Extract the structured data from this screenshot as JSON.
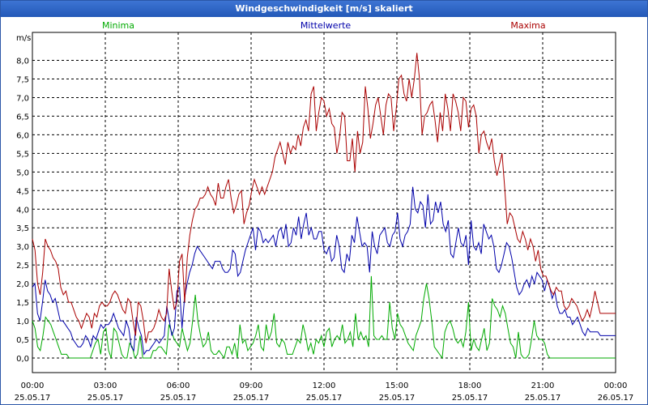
{
  "window": {
    "title": "Windgeschwindigkeit [m/s] skaliert"
  },
  "chart_data": {
    "type": "line",
    "title": "Windgeschwindigkeit [m/s] skaliert",
    "ylabel": "m/s",
    "xlabel": "",
    "ylim": [
      0,
      8.4
    ],
    "xlim": [
      0,
      24
    ],
    "grid": true,
    "legend_placement": "top",
    "y_ticks": [
      "0,0",
      "0,5",
      "1,0",
      "1,5",
      "2,0",
      "2,5",
      "3,0",
      "3,5",
      "4,0",
      "4,5",
      "5,0",
      "5,5",
      "6,0",
      "6,5",
      "7,0",
      "7,5",
      "8,0"
    ],
    "x_ticks": [
      {
        "time": "00:00",
        "date": "25.05.17"
      },
      {
        "time": "03:00",
        "date": "25.05.17"
      },
      {
        "time": "06:00",
        "date": "25.05.17"
      },
      {
        "time": "09:00",
        "date": "25.05.17"
      },
      {
        "time": "12:00",
        "date": "25.05.17"
      },
      {
        "time": "15:00",
        "date": "25.05.17"
      },
      {
        "time": "18:00",
        "date": "25.05.17"
      },
      {
        "time": "21:00",
        "date": "25.05.17"
      },
      {
        "time": "00:00",
        "date": "26.05.17"
      }
    ],
    "series": [
      {
        "name": "Minima",
        "color": "#00aa00",
        "x_step_h": 0.167,
        "values": [
          1.0,
          0.8,
          0.3,
          0.2,
          0.6,
          1.1,
          1.0,
          0.9,
          0.7,
          0.5,
          0.3,
          0.1,
          0.1,
          0.1,
          0.0,
          0.0,
          0.0,
          0.0,
          0.0,
          0.0,
          0.0,
          0.0,
          0.0,
          0.2,
          0.4,
          0.5,
          0.1,
          0.7,
          0.8,
          0.2,
          0.0,
          0.8,
          0.7,
          0.4,
          0.1,
          0.0,
          0.0,
          0.4,
          0.3,
          0.0,
          0.1,
          0.6,
          0.0,
          0.0,
          0.0,
          0.0,
          0.2,
          0.2,
          0.3,
          0.3,
          0.2,
          0.1,
          0.9,
          0.7,
          0.5,
          0.4,
          0.3,
          0.8,
          0.5,
          0.2,
          0.4,
          1.0,
          1.7,
          1.0,
          0.6,
          0.3,
          0.4,
          0.7,
          0.2,
          0.1,
          0.1,
          0.2,
          0.1,
          0.0,
          0.3,
          0.3,
          0.1,
          0.4,
          0.0,
          0.9,
          0.4,
          0.5,
          0.2,
          0.3,
          0.4,
          0.6,
          0.9,
          0.3,
          0.2,
          0.9,
          0.5,
          0.7,
          1.2,
          0.4,
          0.3,
          0.5,
          0.4,
          0.1,
          0.1,
          0.1,
          0.3,
          0.5,
          0.4,
          0.9,
          0.6,
          0.2,
          0.4,
          0.1,
          0.5,
          0.4,
          0.6,
          0.3,
          0.7,
          0.8,
          0.3,
          0.5,
          0.6,
          0.5,
          0.9,
          0.4,
          0.5,
          0.7,
          0.3,
          1.2,
          0.5,
          0.7,
          0.5,
          0.6,
          0.3,
          2.2,
          0.6,
          0.5,
          0.5,
          0.6,
          0.5,
          0.5,
          1.5,
          0.8,
          0.5,
          1.2,
          0.9,
          0.8,
          0.6,
          0.4,
          0.3,
          0.2,
          0.6,
          0.8,
          1.0,
          1.6,
          2.0,
          1.6,
          1.0,
          0.3,
          0.2,
          0.1,
          0.0,
          0.7,
          0.9,
          1.0,
          0.8,
          0.5,
          0.4,
          0.5,
          0.3,
          0.7,
          1.5,
          0.2,
          0.5,
          0.3,
          0.2,
          0.5,
          0.8,
          0.2,
          0.4,
          1.6,
          1.4,
          1.3,
          1.1,
          1.4,
          1.2,
          0.8,
          0.4,
          0.3,
          0.0,
          0.7,
          0.1,
          0.0,
          0.0,
          0.1,
          0.5,
          1.0,
          0.6,
          0.5,
          0.5,
          0.4,
          0.1,
          0.0,
          0.0,
          0.0,
          0.0,
          0.0,
          0.0,
          0.0,
          0.0,
          0.0,
          0.0,
          0.0,
          0.0,
          0.0,
          0.0,
          0.0,
          0.0,
          0.0,
          0.0,
          0.0,
          0.0,
          0.0,
          0.0,
          0.0,
          0.0,
          0.0,
          0.0
        ]
      },
      {
        "name": "Mittelwerte",
        "color": "#0000aa",
        "x_step_h": 0.167,
        "values": [
          1.9,
          2.0,
          1.2,
          1.0,
          1.5,
          2.1,
          1.8,
          1.7,
          1.5,
          1.6,
          1.3,
          1.0,
          1.0,
          0.9,
          0.8,
          0.7,
          0.5,
          0.4,
          0.3,
          0.3,
          0.4,
          0.6,
          0.5,
          0.3,
          0.6,
          0.5,
          0.7,
          0.9,
          0.8,
          0.9,
          0.9,
          1.0,
          1.2,
          1.0,
          0.8,
          0.7,
          0.6,
          1.0,
          0.8,
          0.3,
          0.2,
          1.1,
          0.8,
          0.6,
          0.1,
          0.2,
          0.2,
          0.3,
          0.4,
          0.5,
          0.4,
          0.5,
          0.6,
          1.4,
          1.0,
          0.6,
          0.8,
          1.8,
          1.9,
          0.8,
          1.6,
          2.0,
          2.3,
          2.5,
          2.8,
          3.0,
          2.9,
          2.8,
          2.7,
          2.6,
          2.5,
          2.4,
          2.6,
          2.6,
          2.6,
          2.4,
          2.3,
          2.3,
          2.4,
          2.9,
          2.8,
          2.2,
          2.3,
          2.6,
          2.9,
          3.1,
          3.3,
          3.5,
          2.9,
          3.5,
          3.4,
          3.1,
          3.2,
          3.1,
          3.2,
          3.3,
          3.0,
          3.4,
          3.5,
          3.2,
          3.6,
          3.0,
          3.1,
          3.5,
          3.3,
          3.8,
          3.2,
          3.6,
          3.9,
          3.3,
          3.5,
          3.2,
          3.2,
          3.4,
          3.4,
          2.9,
          2.8,
          3.0,
          2.6,
          2.7,
          3.3,
          3.0,
          2.4,
          2.3,
          2.8,
          2.6,
          3.3,
          3.1,
          3.8,
          3.4,
          3.0,
          3.1,
          3.0,
          2.3,
          3.4,
          3.0,
          2.8,
          3.3,
          3.4,
          3.5,
          3.1,
          3.0,
          3.3,
          3.4,
          3.9,
          3.2,
          3.0,
          3.3,
          3.4,
          3.6,
          4.6,
          4.0,
          3.9,
          4.2,
          4.1,
          3.5,
          4.4,
          3.6,
          3.7,
          4.2,
          3.9,
          4.2,
          3.6,
          3.4,
          3.7,
          2.8,
          2.7,
          3.1,
          3.5,
          3.1,
          3.0,
          3.3,
          2.5,
          3.7,
          3.0,
          2.9,
          3.1,
          2.8,
          3.6,
          3.4,
          3.2,
          3.3,
          3.0,
          2.4,
          2.3,
          2.5,
          2.8,
          3.1,
          3.0,
          2.7,
          2.3,
          1.9,
          1.7,
          1.8,
          2.0,
          2.1,
          1.9,
          2.2,
          2.0,
          2.3,
          2.2,
          2.1,
          1.8,
          2.1,
          1.9,
          1.6,
          1.8,
          1.4,
          1.2,
          1.2,
          1.3,
          1.1,
          1.1,
          0.9,
          1.0,
          1.1,
          0.9,
          0.7,
          0.6,
          0.8,
          0.7,
          0.7,
          0.7,
          0.7,
          0.6,
          0.6,
          0.6,
          0.6,
          0.6,
          0.6,
          0.6
        ]
      },
      {
        "name": "Maxima",
        "color": "#aa0000",
        "x_step_h": 0.167,
        "values": [
          3.2,
          2.9,
          2.0,
          1.7,
          2.3,
          3.2,
          3.0,
          2.9,
          2.7,
          2.6,
          2.4,
          1.9,
          1.7,
          1.8,
          1.5,
          1.5,
          1.3,
          1.1,
          1.0,
          0.8,
          1.0,
          1.2,
          1.1,
          0.8,
          1.2,
          1.1,
          1.4,
          1.5,
          1.4,
          1.4,
          1.5,
          1.7,
          1.8,
          1.7,
          1.5,
          1.3,
          1.2,
          1.6,
          1.5,
          1.0,
          0.6,
          1.5,
          1.4,
          1.0,
          0.4,
          0.7,
          0.7,
          0.8,
          1.0,
          1.3,
          1.1,
          1.0,
          1.2,
          2.4,
          1.8,
          1.3,
          1.5,
          2.6,
          2.8,
          1.5,
          2.7,
          3.3,
          3.7,
          4.0,
          4.1,
          4.3,
          4.3,
          4.4,
          4.6,
          4.4,
          4.3,
          4.1,
          4.7,
          4.3,
          4.3,
          4.6,
          4.8,
          4.3,
          3.9,
          4.1,
          4.4,
          4.5,
          3.6,
          3.9,
          4.1,
          4.5,
          4.8,
          4.6,
          4.4,
          4.6,
          4.4,
          4.6,
          4.8,
          5.0,
          5.4,
          5.6,
          5.8,
          5.5,
          5.2,
          5.8,
          5.5,
          5.7,
          5.6,
          6.0,
          5.7,
          6.2,
          6.4,
          6.1,
          7.1,
          7.3,
          6.1,
          6.6,
          7.0,
          6.9,
          6.5,
          6.7,
          6.3,
          6.2,
          5.5,
          5.9,
          6.6,
          6.5,
          5.3,
          5.3,
          5.9,
          5.0,
          6.1,
          5.5,
          5.8,
          7.3,
          6.7,
          5.9,
          6.3,
          6.8,
          7.0,
          6.5,
          6.0,
          6.8,
          7.1,
          7.0,
          6.1,
          6.7,
          7.5,
          7.6,
          7.1,
          6.9,
          7.5,
          7.0,
          7.5,
          8.2,
          7.5,
          6.0,
          6.5,
          6.6,
          6.8,
          6.9,
          6.4,
          5.8,
          6.6,
          6.1,
          7.1,
          6.7,
          6.1,
          7.1,
          6.9,
          6.6,
          6.1,
          7.0,
          6.9,
          6.2,
          6.7,
          6.8,
          6.5,
          5.5,
          6.0,
          6.1,
          5.8,
          5.6,
          5.9,
          5.3,
          4.9,
          5.2,
          5.5,
          4.6,
          3.6,
          3.9,
          3.8,
          3.5,
          3.2,
          3.1,
          3.4,
          3.2,
          2.9,
          3.2,
          3.0,
          2.6,
          2.9,
          2.4,
          2.2,
          2.2,
          2.0,
          1.8,
          1.7,
          1.9,
          1.8,
          1.8,
          1.4,
          1.3,
          1.4,
          1.6,
          1.5,
          1.4,
          1.2,
          1.0,
          1.1,
          1.3,
          1.1,
          1.4,
          1.8,
          1.5,
          1.2,
          1.2,
          1.2,
          1.2,
          1.2,
          1.2,
          1.2
        ]
      }
    ]
  }
}
